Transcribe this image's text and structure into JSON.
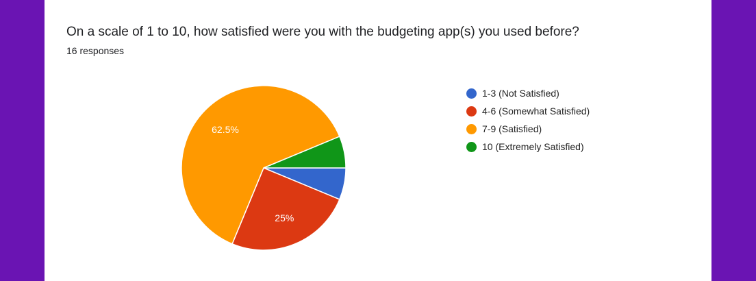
{
  "question": "On a scale of 1 to 10, how satisfied were you with the budgeting app(s) you used before?",
  "response_count": "16 responses",
  "chart_data": {
    "type": "pie",
    "labels": [
      "1-3 (Not Satisfied)",
      "4-6 (Somewhat Satisfied)",
      "7-9 (Satisfied)",
      "10 (Extremely Satisfied)"
    ],
    "values": [
      1,
      4,
      10,
      1
    ],
    "percentages": [
      6.25,
      25,
      62.5,
      6.25
    ],
    "slice_labels": [
      "",
      "25%",
      "62.5%",
      ""
    ],
    "colors": [
      "#3366cc",
      "#dc3912",
      "#ff9900",
      "#109618"
    ],
    "legend_position": "right"
  }
}
